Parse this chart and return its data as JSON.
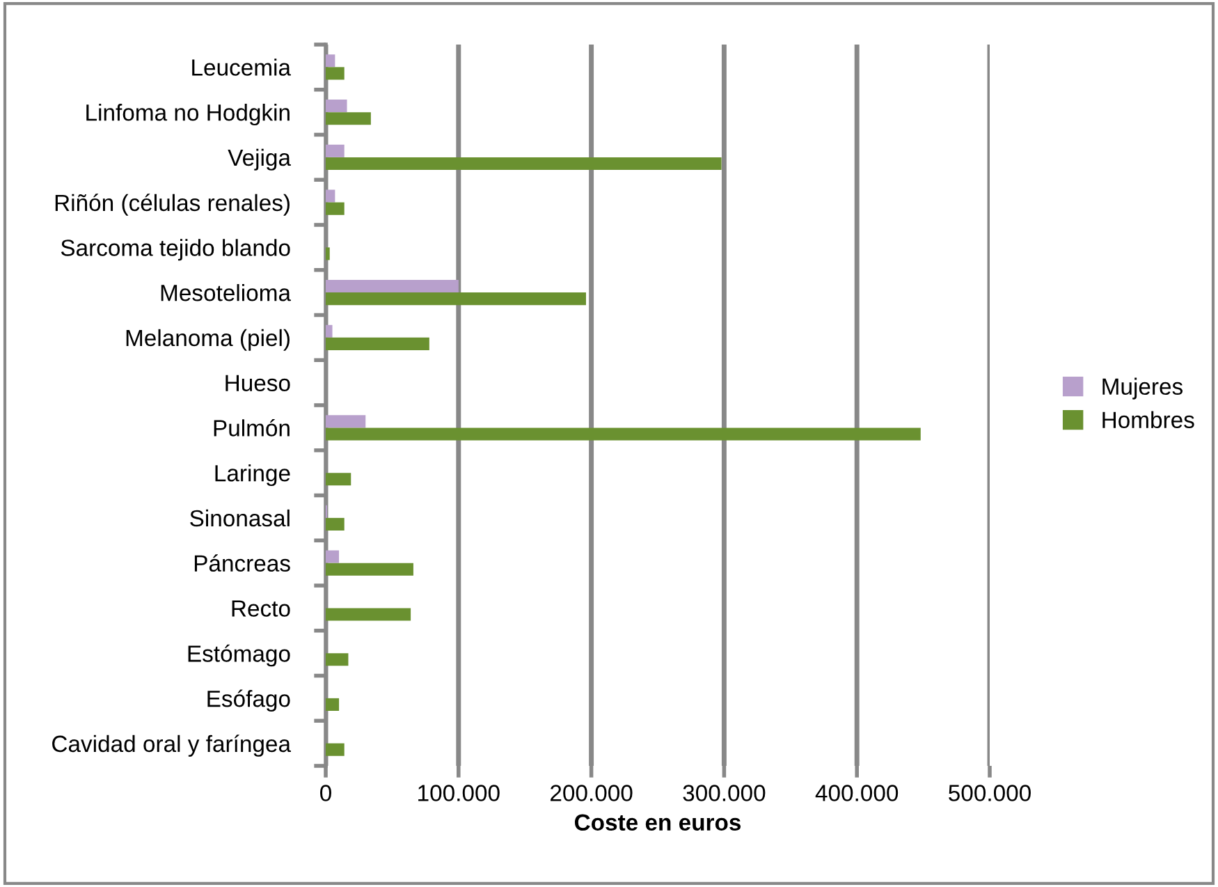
{
  "chart_data": {
    "type": "bar",
    "orientation": "horizontal",
    "xlabel": "Coste en euros",
    "categories": [
      "Leucemia",
      "Linfoma no Hodgkin",
      "Vejiga",
      "Riñón (células renales)",
      "Sarcoma tejido blando",
      "Mesotelioma",
      "Melanoma (piel)",
      "Hueso",
      "Pulmón",
      "Laringe",
      "Sinonasal",
      "Páncreas",
      "Recto",
      "Estómago",
      "Esófago",
      "Cavidad oral y faríngea"
    ],
    "series": [
      {
        "name": "Mujeres",
        "color": "#b8a0cc",
        "values": [
          7000,
          16000,
          14000,
          7000,
          null,
          100000,
          5000,
          null,
          30000,
          null,
          1000,
          10000,
          null,
          null,
          null,
          null
        ]
      },
      {
        "name": "Hombres",
        "color": "#6a9130",
        "values": [
          14000,
          34000,
          298000,
          14000,
          3000,
          196000,
          78000,
          null,
          448000,
          19000,
          14000,
          66000,
          64000,
          17000,
          10000,
          14000
        ]
      }
    ],
    "xlim": [
      0,
      500000
    ],
    "xticks": [
      0,
      {
        "value": 100000,
        "label": "100.000"
      },
      {
        "value": 200000,
        "label": "200.000"
      },
      {
        "value": 300000,
        "label": "300.000"
      },
      {
        "value": 400000,
        "label": "400.000"
      },
      {
        "value": 500000,
        "label": "500.000"
      }
    ],
    "grid": "x",
    "legend": "right"
  }
}
